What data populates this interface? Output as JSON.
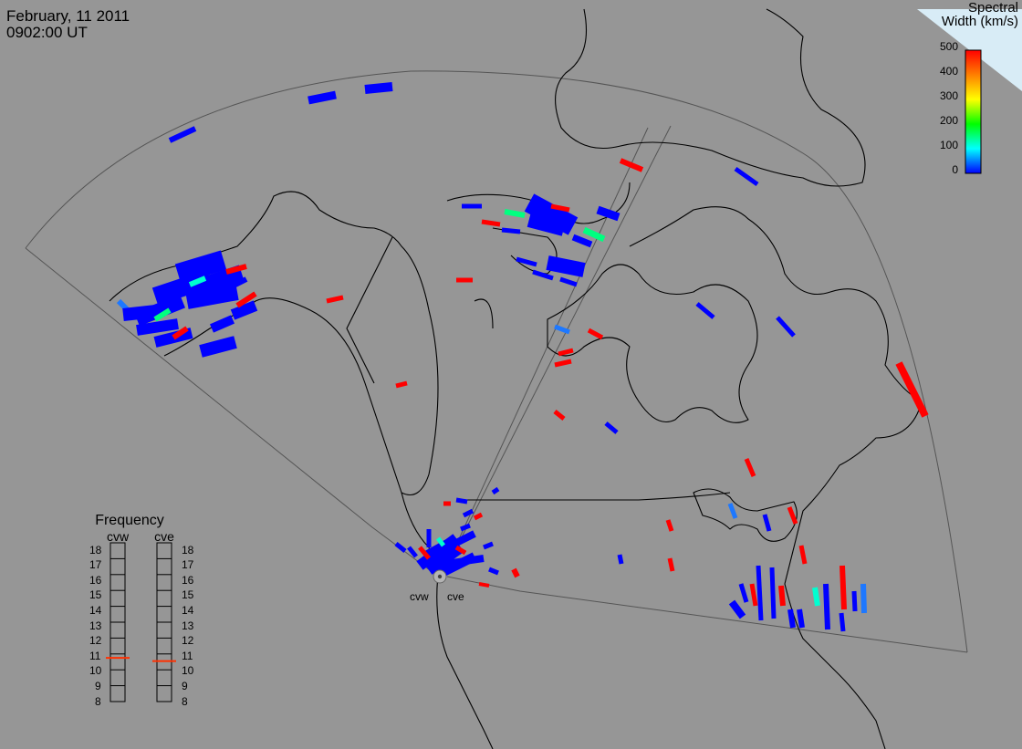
{
  "header": {
    "date": "February, 11 2011",
    "time": "0902:00 UT"
  },
  "colorbar": {
    "title_line1": "Spectral",
    "title_line2": "Width (km/s)",
    "ticks": [
      "500",
      "400",
      "300",
      "200",
      "100",
      "0"
    ],
    "gradient": [
      "#ff0000",
      "#ff7f00",
      "#ffff00",
      "#00ff00",
      "#00ffff",
      "#0000ff"
    ]
  },
  "radars": {
    "west": "cvw",
    "east": "cve"
  },
  "frequency": {
    "title": "Frequency",
    "column_west": "cvw",
    "column_east": "cve",
    "levels": [
      "18",
      "17",
      "16",
      "15",
      "14",
      "13",
      "12",
      "11",
      "10",
      "9",
      "8"
    ],
    "west_mhz": 10.75,
    "east_mhz": 10.55,
    "marker_color": "#ff3000"
  },
  "colors": {
    "background": "#969696",
    "coastline": "#000000",
    "fov": "#555555",
    "low": "#0000ff",
    "mid": "#00ffd0",
    "high": "#ff0000"
  }
}
